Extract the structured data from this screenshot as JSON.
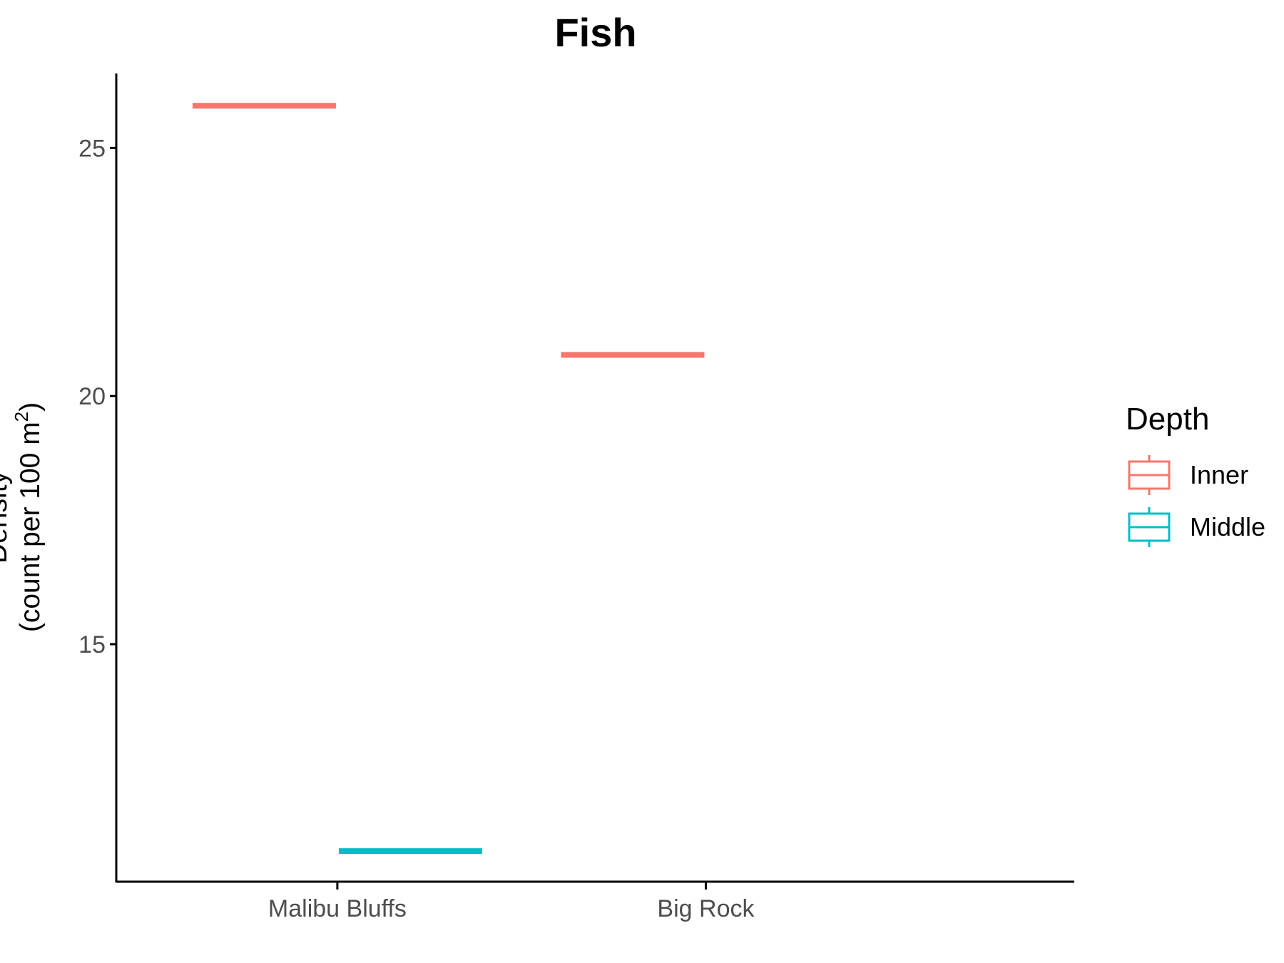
{
  "chart_data": {
    "type": "box",
    "title": "Fish",
    "xlabel": "",
    "ylabel_line1": "Density",
    "ylabel_line2_prefix": "(count per 100 m",
    "ylabel_sup": "2",
    "ylabel_line2_suffix": ")",
    "ylim": [
      10.2,
      26.5
    ],
    "yticks": [
      {
        "value": 15,
        "label": "15"
      },
      {
        "value": 20,
        "label": "20"
      },
      {
        "value": 25,
        "label": "25"
      }
    ],
    "categories": [
      "Malibu Bluffs",
      "Big Rock"
    ],
    "legend_title": "Depth",
    "legend_position": "right",
    "grid": false,
    "series": [
      {
        "name": "Inner",
        "color": "#F8766D",
        "values": [
          25.85,
          20.83
        ]
      },
      {
        "name": "Middle",
        "color": "#00BFC4",
        "values": [
          10.83,
          null
        ]
      }
    ]
  }
}
